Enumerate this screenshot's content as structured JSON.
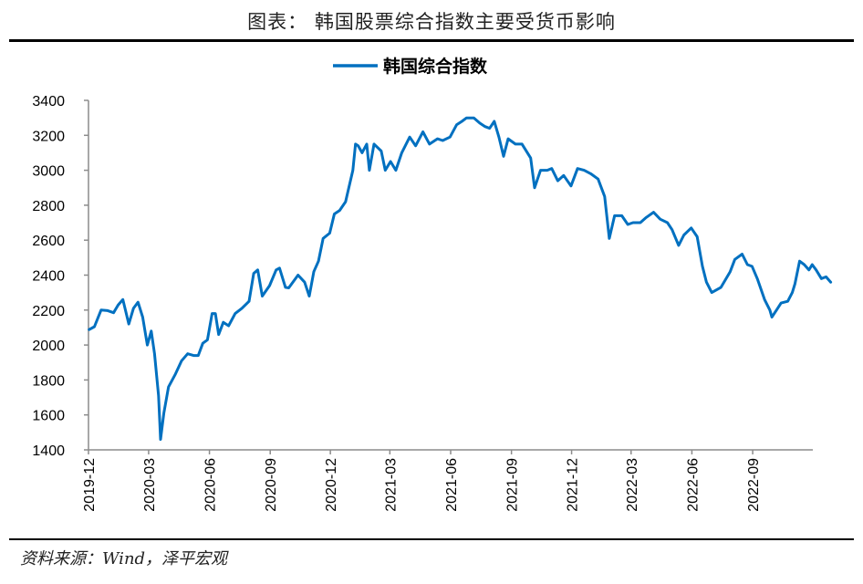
{
  "header": {
    "title": "图表：  韩国股票综合指数主要受货币影响"
  },
  "footer": {
    "source": "资料来源：Wind，泽平宏观"
  },
  "chart_data": {
    "type": "line",
    "title": "",
    "xlabel": "",
    "ylabel": "",
    "ylim": [
      1400,
      3400
    ],
    "yticks": [
      1400,
      1600,
      1800,
      2000,
      2200,
      2400,
      2600,
      2800,
      3000,
      3200,
      3400
    ],
    "xlim": [
      "2019-12",
      "2022-12"
    ],
    "xticks": [
      "2019-12",
      "2020-03",
      "2020-06",
      "2020-09",
      "2020-12",
      "2021-03",
      "2021-06",
      "2021-09",
      "2021-12",
      "2022-03",
      "2022-06",
      "2022-09"
    ],
    "grid": false,
    "legend_position": "top-center",
    "series": [
      {
        "name": "韩国综合指数",
        "color": "#0070C0",
        "x": [
          "2019-12-02",
          "2019-12-10",
          "2019-12-20",
          "2019-12-30",
          "2020-01-08",
          "2020-01-15",
          "2020-01-22",
          "2020-01-31",
          "2020-02-07",
          "2020-02-14",
          "2020-02-21",
          "2020-02-28",
          "2020-03-05",
          "2020-03-10",
          "2020-03-16",
          "2020-03-19",
          "2020-03-24",
          "2020-03-31",
          "2020-04-10",
          "2020-04-20",
          "2020-04-29",
          "2020-05-08",
          "2020-05-15",
          "2020-05-22",
          "2020-05-29",
          "2020-06-05",
          "2020-06-10",
          "2020-06-15",
          "2020-06-22",
          "2020-06-30",
          "2020-07-10",
          "2020-07-20",
          "2020-07-31",
          "2020-08-07",
          "2020-08-13",
          "2020-08-20",
          "2020-08-31",
          "2020-09-10",
          "2020-09-15",
          "2020-09-24",
          "2020-09-29",
          "2020-10-13",
          "2020-10-23",
          "2020-10-30",
          "2020-11-06",
          "2020-11-13",
          "2020-11-20",
          "2020-11-30",
          "2020-12-07",
          "2020-12-15",
          "2020-12-24",
          "2021-01-04",
          "2021-01-08",
          "2021-01-12",
          "2021-01-18",
          "2021-01-25",
          "2021-01-29",
          "2021-02-05",
          "2021-02-16",
          "2021-02-22",
          "2021-03-02",
          "2021-03-10",
          "2021-03-19",
          "2021-03-31",
          "2021-04-09",
          "2021-04-20",
          "2021-04-30",
          "2021-05-12",
          "2021-05-20",
          "2021-05-31",
          "2021-06-10",
          "2021-06-18",
          "2021-06-25",
          "2021-07-06",
          "2021-07-15",
          "2021-07-23",
          "2021-07-30",
          "2021-08-06",
          "2021-08-13",
          "2021-08-20",
          "2021-08-27",
          "2021-09-07",
          "2021-09-17",
          "2021-09-30",
          "2021-10-06",
          "2021-10-15",
          "2021-10-25",
          "2021-11-01",
          "2021-11-10",
          "2021-11-19",
          "2021-11-30",
          "2021-12-10",
          "2021-12-20",
          "2021-12-30",
          "2022-01-10",
          "2022-01-20",
          "2022-01-27",
          "2022-02-04",
          "2022-02-15",
          "2022-02-24",
          "2022-03-04",
          "2022-03-15",
          "2022-03-24",
          "2022-04-04",
          "2022-04-14",
          "2022-04-25",
          "2022-05-02",
          "2022-05-12",
          "2022-05-20",
          "2022-05-31",
          "2022-06-09",
          "2022-06-17",
          "2022-06-23",
          "2022-07-01",
          "2022-07-15",
          "2022-07-29",
          "2022-08-05",
          "2022-08-16",
          "2022-08-24",
          "2022-08-31",
          "2022-09-08",
          "2022-09-19",
          "2022-09-27",
          "2022-09-30",
          "2022-10-07",
          "2022-10-14",
          "2022-10-24",
          "2022-10-31",
          "2022-11-04",
          "2022-11-11",
          "2022-11-18",
          "2022-11-25",
          "2022-11-30",
          "2022-12-06",
          "2022-12-14",
          "2022-12-21",
          "2022-12-28"
        ],
        "values": [
          2088,
          2105,
          2200,
          2197,
          2185,
          2230,
          2260,
          2120,
          2210,
          2245,
          2160,
          2000,
          2080,
          1950,
          1710,
          1460,
          1610,
          1760,
          1830,
          1910,
          1950,
          1940,
          1940,
          2010,
          2030,
          2180,
          2180,
          2060,
          2130,
          2110,
          2180,
          2210,
          2250,
          2410,
          2430,
          2280,
          2340,
          2430,
          2440,
          2330,
          2327,
          2400,
          2360,
          2280,
          2420,
          2480,
          2610,
          2640,
          2750,
          2770,
          2820,
          3000,
          3150,
          3140,
          3100,
          3150,
          3000,
          3150,
          3110,
          3000,
          3050,
          3000,
          3100,
          3190,
          3140,
          3220,
          3150,
          3180,
          3170,
          3190,
          3260,
          3280,
          3300,
          3300,
          3270,
          3250,
          3240,
          3280,
          3190,
          3080,
          3180,
          3150,
          3150,
          3070,
          2900,
          3000,
          3000,
          3010,
          2940,
          2970,
          2910,
          3010,
          3000,
          2980,
          2950,
          2850,
          2610,
          2740,
          2740,
          2690,
          2700,
          2700,
          2730,
          2760,
          2720,
          2700,
          2660,
          2570,
          2630,
          2670,
          2620,
          2450,
          2360,
          2300,
          2330,
          2420,
          2490,
          2520,
          2460,
          2450,
          2380,
          2260,
          2200,
          2160,
          2200,
          2240,
          2250,
          2300,
          2350,
          2480,
          2460,
          2430,
          2460,
          2430,
          2380,
          2390,
          2360
        ]
      }
    ]
  }
}
